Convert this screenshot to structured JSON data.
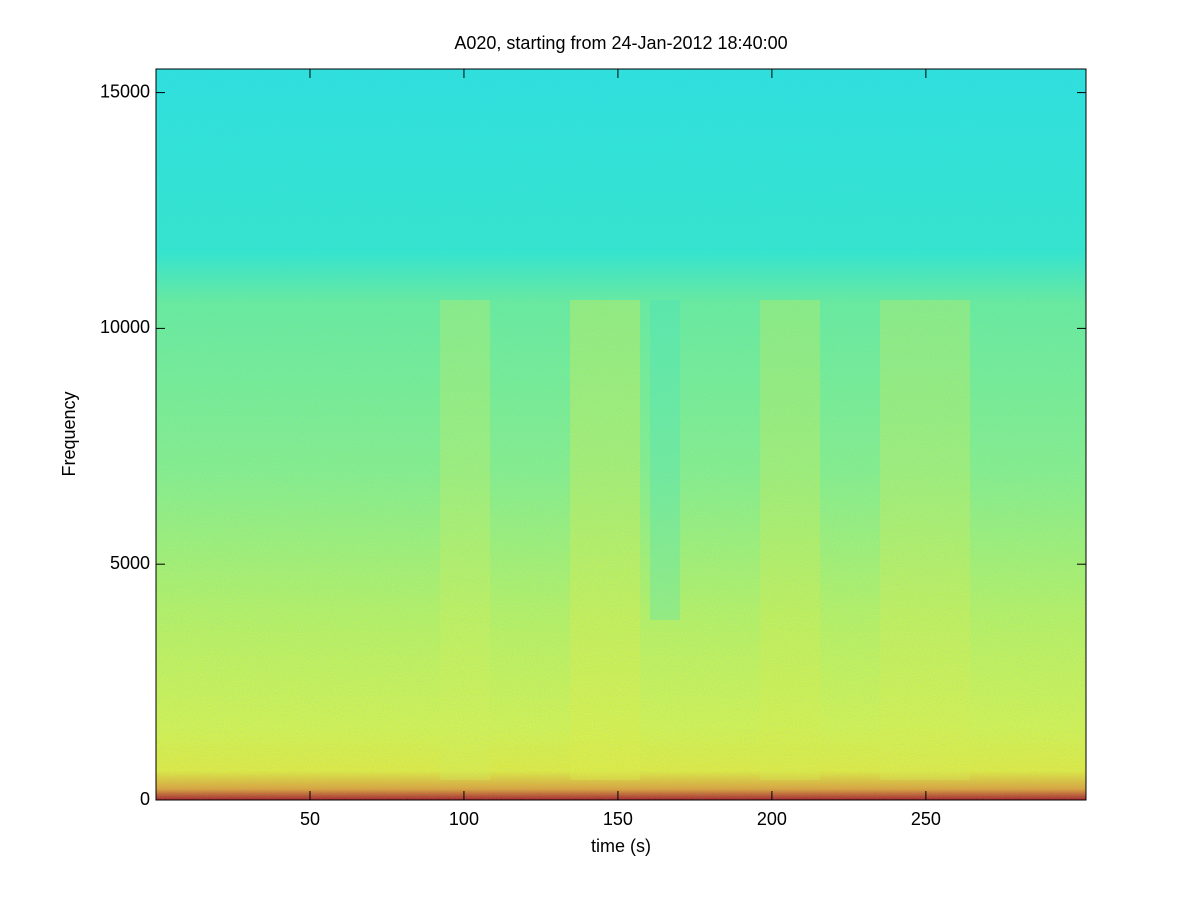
{
  "chart_data": {
    "type": "spectrogram",
    "title": "A020, starting from 24-Jan-2012 18:40:00",
    "x_label": "time (s)",
    "y_label": "Frequency",
    "xlim": [
      0,
      302
    ],
    "xticks": [
      50,
      100,
      150,
      200,
      250
    ],
    "ylim": [
      0,
      15500
    ],
    "yticks": [
      0,
      5000,
      10000,
      15000
    ]
  }
}
